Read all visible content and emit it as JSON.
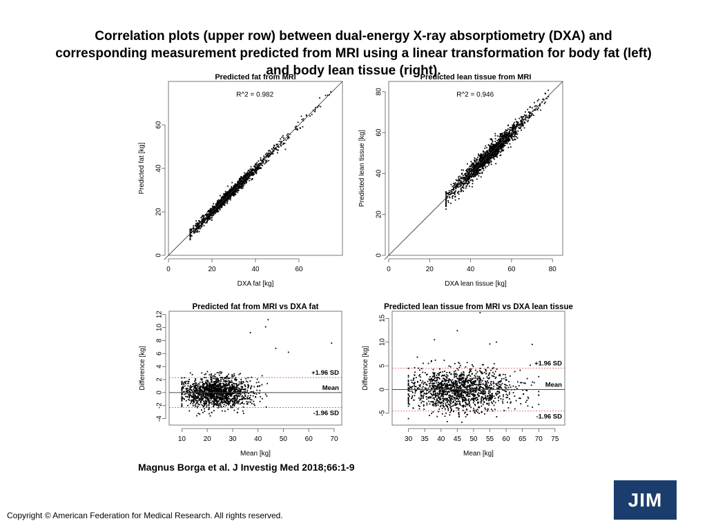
{
  "slide": {
    "title_lines": [
      "Correlation plots (upper row) between dual-energy X-ray absorptiometry (DXA) and",
      "corresponding measurement predicted from MRI using a linear transformation for body fat (left)",
      "and body lean tissue (right)."
    ],
    "citation": "Magnus Borga et al. J Investig Med 2018;66:1-9",
    "copyright": "Copyright © American Federation for Medical Research. All rights reserved.",
    "logo": "JIM"
  },
  "chart_data": [
    {
      "type": "scatter",
      "title": "Predicted fat from MRI",
      "xlabel": "DXA fat [kg]",
      "ylabel": "Predicted fat [kg]",
      "xlim": [
        0,
        80
      ],
      "ylim": [
        0,
        80
      ],
      "xticks": [
        0,
        20,
        40,
        60
      ],
      "yticks": [
        0,
        20,
        40,
        60
      ],
      "annotation": "R^2 = 0.982",
      "identity_line": true,
      "scatter_spec": {
        "center": 28,
        "spread": 9,
        "min": 10,
        "max": 75,
        "noise_sd": 1.2,
        "n": 1500,
        "cluster_range": [
          12,
          50
        ]
      }
    },
    {
      "type": "scatter",
      "title": "Predicted lean tissue from MRI",
      "xlabel": "DXA lean tissue [kg]",
      "ylabel": "Predicted lean tissue [kg]",
      "xlim": [
        0,
        85
      ],
      "ylim": [
        0,
        85
      ],
      "xticks": [
        0,
        20,
        40,
        60,
        80
      ],
      "yticks": [
        0,
        20,
        40,
        60,
        80
      ],
      "annotation": "R^2 = 0.946",
      "identity_line": true,
      "scatter_spec": {
        "center": 48,
        "spread": 9,
        "min": 28,
        "max": 78,
        "noise_sd": 2.2,
        "n": 1500,
        "cluster_range": [
          30,
          70
        ]
      }
    },
    {
      "type": "scatter",
      "title": "Predicted fat from MRI vs DXA fat",
      "xlabel": "Mean [kg]",
      "ylabel": "Difference [kg]",
      "xlim": [
        5,
        73
      ],
      "ylim": [
        -5,
        12.5
      ],
      "xticks": [
        10,
        20,
        30,
        40,
        50,
        60,
        70
      ],
      "yticks": [
        -4,
        -2,
        0,
        2,
        4,
        6,
        8,
        10,
        12
      ],
      "mean_difference": 0,
      "upper_sd": 2.3,
      "lower_sd": -2.3,
      "line_labels": [
        "+1.96 SD",
        "Mean",
        "-1.96 SD"
      ],
      "scatter_spec": {
        "center": 24,
        "spread": 7,
        "min": 10,
        "max": 58,
        "noise_sd": 1.15,
        "n": 1500,
        "outliers": [
          [
            37,
            9.2
          ],
          [
            44,
            11.2
          ],
          [
            43,
            10.1
          ],
          [
            47,
            6.8
          ],
          [
            69,
            7.6
          ],
          [
            52,
            6.2
          ]
        ]
      }
    },
    {
      "type": "scatter",
      "title": "Predicted lean tissue from MRI vs DXA lean tissue",
      "xlabel": "Mean [kg]",
      "ylabel": "Difference [kg]",
      "xlim": [
        25,
        78
      ],
      "ylim": [
        -7.5,
        16.5
      ],
      "xticks": [
        30,
        35,
        40,
        45,
        50,
        55,
        60,
        65,
        70,
        75
      ],
      "yticks": [
        -5,
        0,
        5,
        10,
        15
      ],
      "mean_difference": 0,
      "upper_sd": 4.5,
      "lower_sd": -4.5,
      "line_labels": [
        "+1.96 SD",
        "Mean",
        "-1.96 SD"
      ],
      "scatter_spec": {
        "center": 46,
        "spread": 8,
        "min": 30,
        "max": 70,
        "noise_sd": 2.2,
        "n": 1500,
        "outliers": [
          [
            52,
            16.2
          ],
          [
            45,
            12.4
          ],
          [
            38,
            10.5
          ],
          [
            57,
            10
          ],
          [
            68,
            9.5
          ],
          [
            55,
            9.6
          ]
        ]
      }
    }
  ]
}
